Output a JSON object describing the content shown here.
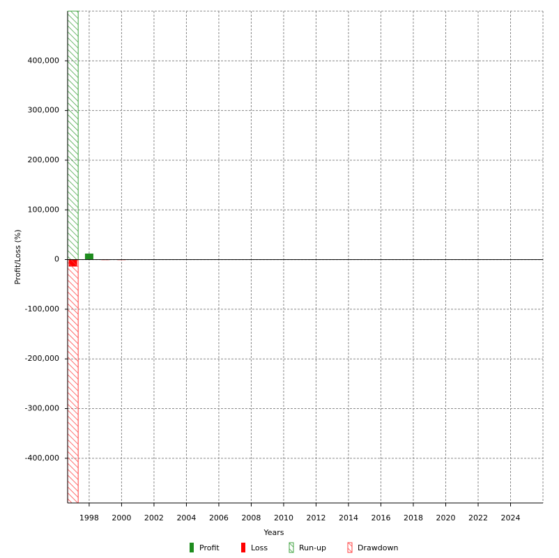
{
  "chart_data": {
    "type": "bar",
    "xlabel": "Years",
    "ylabel": "Profit/Loss (%)",
    "x": [
      1997,
      1998,
      1999,
      2000
    ],
    "series": [
      {
        "name": "Profit",
        "color": "#1e8c1e",
        "style": "solid",
        "values": [
          null,
          12000,
          null,
          null
        ]
      },
      {
        "name": "Loss",
        "color": "#ff0000",
        "style": "solid",
        "values": [
          -14000,
          null,
          -1000,
          -1000
        ]
      },
      {
        "name": "Run-up",
        "color": "#3ca03c",
        "style": "hatch",
        "values": [
          500000,
          null,
          null,
          null
        ]
      },
      {
        "name": "Drawdown",
        "color": "#ff4040",
        "style": "hatch",
        "values": [
          -490000,
          null,
          null,
          null
        ]
      }
    ],
    "xlim": [
      1996.67,
      2026
    ],
    "xticks": [
      1998,
      2000,
      2002,
      2004,
      2006,
      2008,
      2010,
      2012,
      2014,
      2016,
      2018,
      2020,
      2022,
      2024
    ],
    "ylim": [
      -490000,
      500000
    ],
    "yticks": [
      {
        "value": -400000,
        "label": "-400,000"
      },
      {
        "value": -300000,
        "label": "-300,000"
      },
      {
        "value": -200000,
        "label": "-200,000"
      },
      {
        "value": -100000,
        "label": "-100,000"
      },
      0,
      {
        "value": 100000,
        "label": "100,000"
      },
      {
        "value": 200000,
        "label": "200,000"
      },
      {
        "value": 300000,
        "label": "300,000"
      },
      {
        "value": 400000,
        "label": "400,000"
      }
    ],
    "grid": true
  }
}
